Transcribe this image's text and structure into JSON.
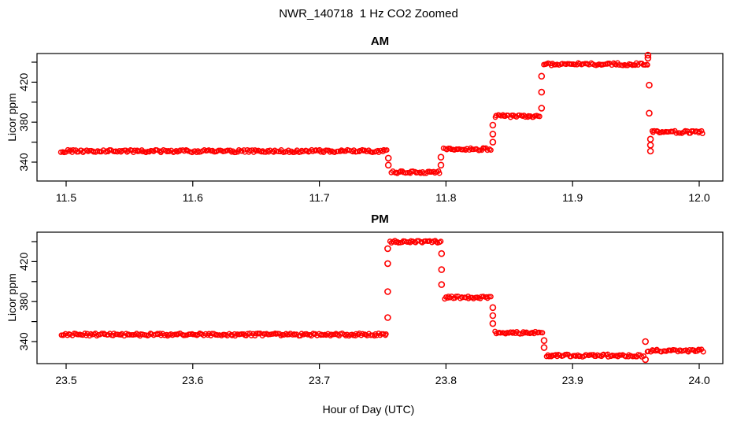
{
  "figure": {
    "title": "NWR_140718  1 Hz CO2 Zoomed",
    "xlabel": "Hour of Day (UTC)",
    "background_color": "#FFFFFF",
    "axis_color": "#000000",
    "point_color": "#FF0000"
  },
  "chart_data": [
    {
      "type": "scatter",
      "title": "AM",
      "ylabel": "Licor ppm",
      "series_name": "1 Hz CO2",
      "marker": "open-circle",
      "color": "#FF0000",
      "xlim": [
        11.477,
        12.019
      ],
      "ylim": [
        321,
        449
      ],
      "grid": "off",
      "legend": "none",
      "xticks": [
        {
          "v": 11.5,
          "label": "11.5"
        },
        {
          "v": 11.6,
          "label": "11.6"
        },
        {
          "v": 11.7,
          "label": "11.7"
        },
        {
          "v": 11.8,
          "label": "11.8"
        },
        {
          "v": 11.9,
          "label": "11.9"
        },
        {
          "v": 12.0,
          "label": "12.0"
        }
      ],
      "yticks": [
        {
          "v": 340,
          "label": "340"
        },
        {
          "v": 360,
          "label": ""
        },
        {
          "v": 380,
          "label": "380"
        },
        {
          "v": 400,
          "label": ""
        },
        {
          "v": 420,
          "label": "420"
        },
        {
          "v": 440,
          "label": ""
        }
      ],
      "steps": [
        {
          "from": 11.496,
          "to": 11.7535,
          "value": 351
        },
        {
          "from": 11.757,
          "to": 11.795,
          "value": 330
        },
        {
          "from": 11.798,
          "to": 11.8355,
          "value": 353
        },
        {
          "from": 11.8385,
          "to": 11.874,
          "value": 386
        },
        {
          "from": 11.877,
          "to": 11.9595,
          "value": 438
        },
        {
          "from": 11.9625,
          "to": 12.003,
          "value": 370
        }
      ],
      "transitions": [
        {
          "x": 11.7545,
          "values": [
            344,
            337
          ]
        },
        {
          "x": 11.796,
          "values": [
            337,
            345
          ]
        },
        {
          "x": 11.837,
          "values": [
            360,
            368,
            377
          ]
        },
        {
          "x": 11.8755,
          "values": [
            394,
            410,
            426
          ]
        },
        {
          "x": 11.9595,
          "values": [
            444,
            447
          ]
        },
        {
          "x": 11.9605,
          "values": [
            417,
            389
          ]
        },
        {
          "x": 11.9615,
          "values": [
            363,
            357,
            351
          ]
        }
      ]
    },
    {
      "type": "scatter",
      "title": "PM",
      "ylabel": "Licor ppm",
      "series_name": "1 Hz CO2",
      "marker": "open-circle",
      "color": "#FF0000",
      "xlim": [
        23.477,
        24.019
      ],
      "ylim": [
        318,
        449
      ],
      "grid": "off",
      "legend": "none",
      "xticks": [
        {
          "v": 23.5,
          "label": "23.5"
        },
        {
          "v": 23.6,
          "label": "23.6"
        },
        {
          "v": 23.7,
          "label": "23.7"
        },
        {
          "v": 23.8,
          "label": "23.8"
        },
        {
          "v": 23.9,
          "label": "23.9"
        },
        {
          "v": 24.0,
          "label": "24.0"
        }
      ],
      "yticks": [
        {
          "v": 340,
          "label": "340"
        },
        {
          "v": 360,
          "label": ""
        },
        {
          "v": 380,
          "label": "380"
        },
        {
          "v": 400,
          "label": ""
        },
        {
          "v": 420,
          "label": "420"
        },
        {
          "v": 440,
          "label": ""
        }
      ],
      "steps": [
        {
          "from": 23.496,
          "to": 23.753,
          "value": 347
        },
        {
          "from": 23.7555,
          "to": 23.796,
          "value": 440
        },
        {
          "from": 23.7985,
          "to": 23.8355,
          "value": 384
        },
        {
          "from": 23.8385,
          "to": 23.876,
          "value": 349
        },
        {
          "from": 23.879,
          "to": 23.956,
          "value": 326
        },
        {
          "from": 23.959,
          "to": 24.003,
          "value": 331
        }
      ],
      "transitions": [
        {
          "x": 23.754,
          "values": [
            364,
            390,
            418,
            433
          ]
        },
        {
          "x": 23.7965,
          "values": [
            428,
            412,
            397
          ]
        },
        {
          "x": 23.837,
          "values": [
            374,
            366,
            358
          ]
        },
        {
          "x": 23.8775,
          "values": [
            341,
            334
          ]
        },
        {
          "x": 23.9575,
          "values": [
            340,
            322
          ]
        }
      ]
    }
  ]
}
